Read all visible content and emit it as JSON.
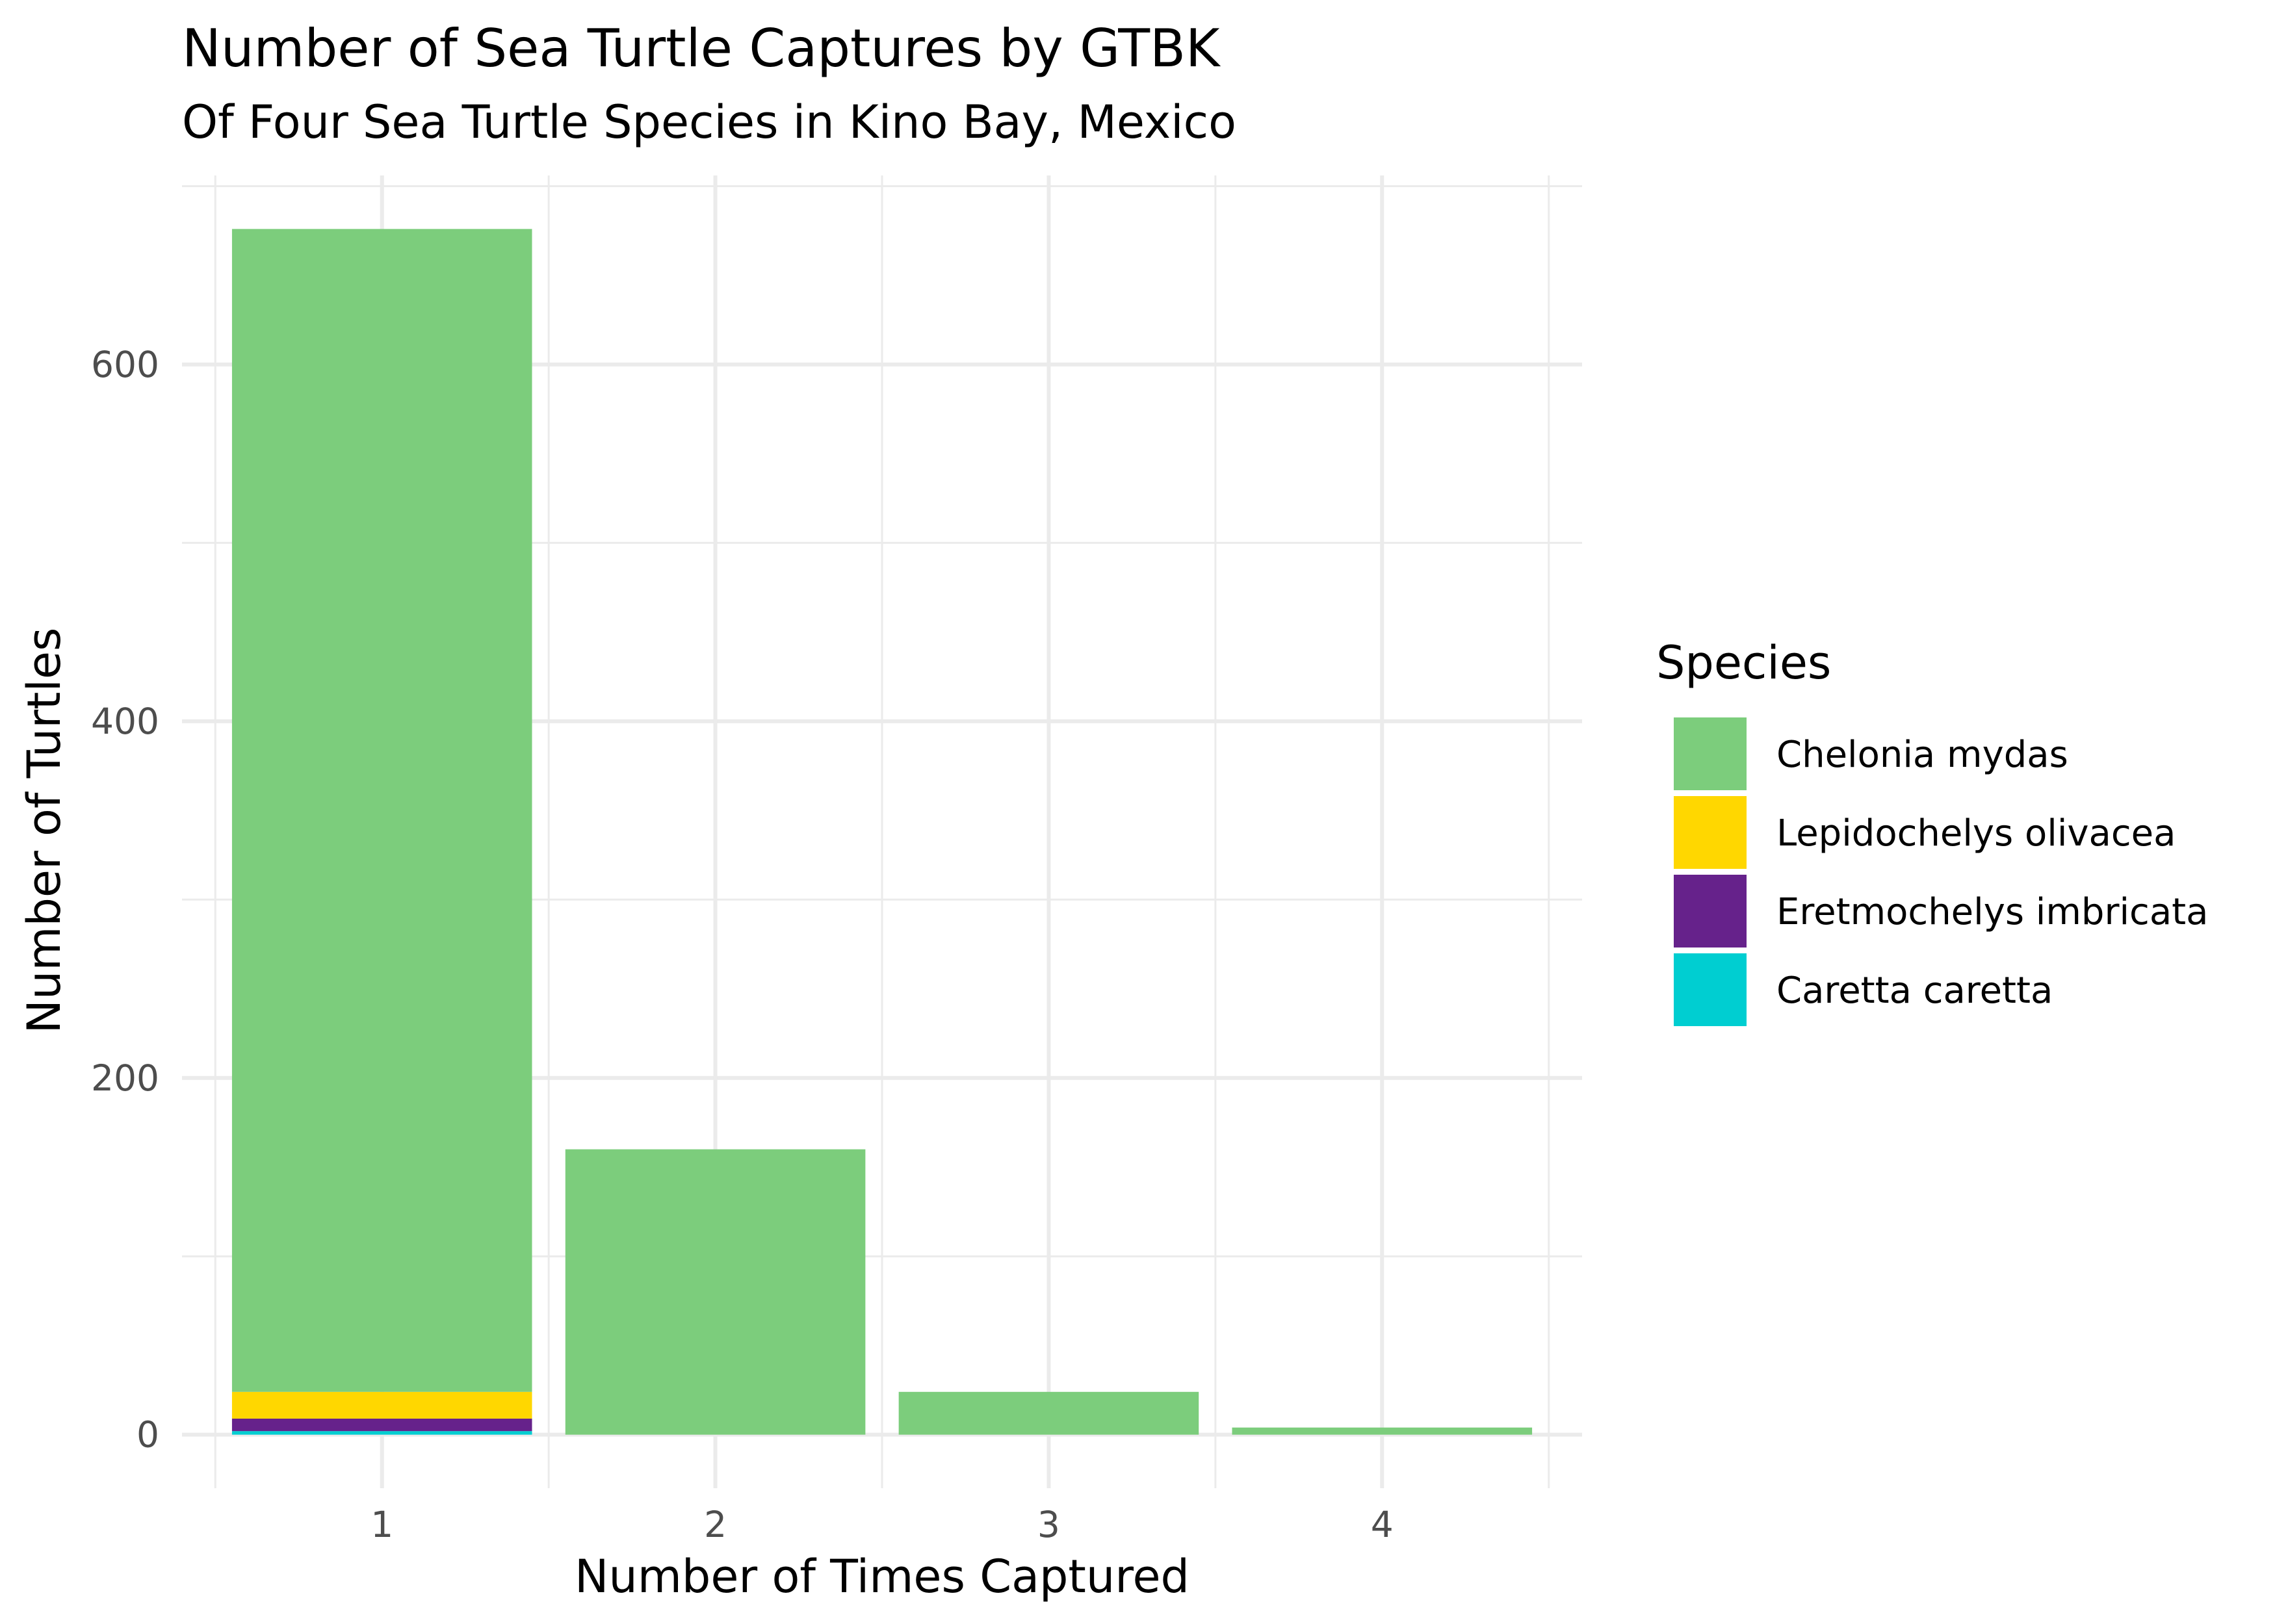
{
  "chart_data": {
    "type": "bar",
    "stacked": true,
    "title": "Number of Sea Turtle Captures by GTBK",
    "subtitle": "Of Four Sea Turtle Species in Kino Bay, Mexico",
    "xlabel": "Number of Times Captured",
    "ylabel": "Number of Turtles",
    "categories": [
      "1",
      "2",
      "3",
      "4"
    ],
    "ylim": [
      -30,
      706
    ],
    "yticks": [
      0,
      200,
      400,
      600
    ],
    "grid": true,
    "legend": {
      "title": "Species",
      "placement": "right"
    },
    "series": [
      {
        "name": "Caretta caretta",
        "color": "#00CED1",
        "values": [
          2,
          0,
          0,
          0
        ]
      },
      {
        "name": "Eretmochelys imbricata",
        "color": "#66228B",
        "values": [
          7,
          0,
          0,
          0
        ]
      },
      {
        "name": "Lepidochelys olivacea",
        "color": "#FFD700",
        "values": [
          15,
          0,
          0,
          0
        ]
      },
      {
        "name": "Chelonia mydas",
        "color": "#7CCD7C",
        "values": [
          652,
          160,
          24,
          4
        ]
      }
    ],
    "legend_order": [
      "Chelonia mydas",
      "Lepidochelys olivacea",
      "Eretmochelys imbricata",
      "Caretta caretta"
    ]
  }
}
